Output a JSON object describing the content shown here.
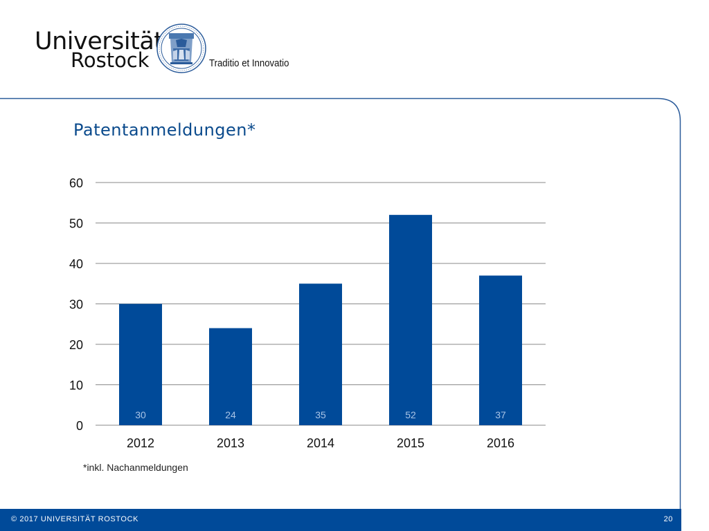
{
  "header": {
    "logo_line1": "Universität",
    "logo_line2": "Rostock",
    "motto": "Traditio et Innovatio",
    "seal_icon": "university-seal-icon"
  },
  "slide": {
    "title": "Patentanmeldungen*",
    "footnote": "*inkl. Nachanmeldungen"
  },
  "footer": {
    "copyright": "© 2017 UNIVERSITÄT ROSTOCK",
    "page_number": "20"
  },
  "colors": {
    "accent": "#004a99",
    "bar": "#004a99",
    "title": "#0a4a8c"
  },
  "chart_data": {
    "type": "bar",
    "categories": [
      "2012",
      "2013",
      "2014",
      "2015",
      "2016"
    ],
    "values": [
      30,
      24,
      35,
      52,
      37
    ],
    "data_labels": [
      "30",
      "24",
      "35",
      "52",
      "37"
    ],
    "yticks": [
      "0",
      "10",
      "20",
      "30",
      "40",
      "50",
      "60"
    ],
    "ylim": [
      0,
      60
    ],
    "grid": true,
    "legend": "none",
    "data_label_position": "inside-base"
  }
}
